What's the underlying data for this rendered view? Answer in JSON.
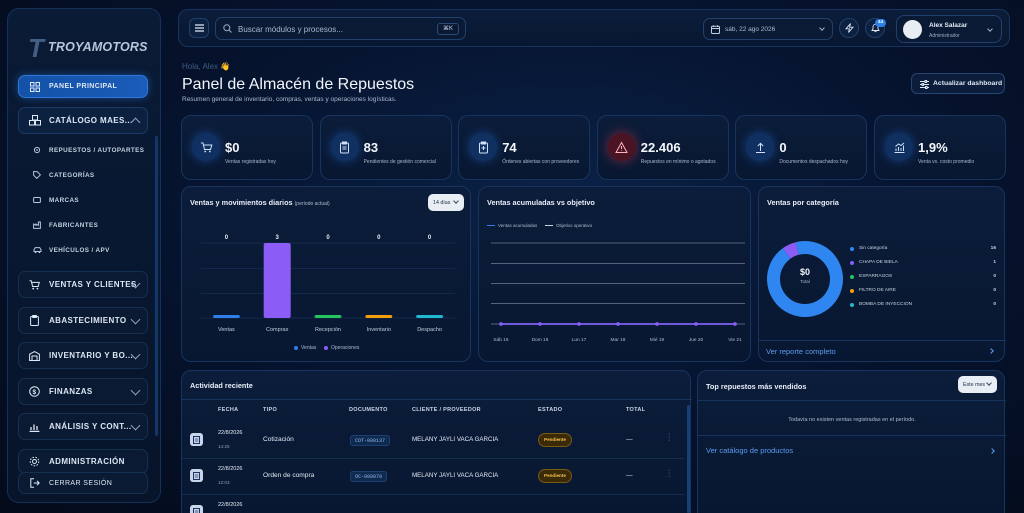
{
  "brand": {
    "logo_text": "TROYAMOTORS"
  },
  "sidebar": {
    "active": "PANEL PRINCIPAL",
    "catalog": "CATÁLOGO MAES...",
    "catalog_items": [
      "REPUESTOS / AUTOPARTES",
      "CATEGORÍAS",
      "MARCAS",
      "FABRICANTES",
      "VEHÍCULOS / APV"
    ],
    "groups": [
      "VENTAS Y CLIENTES",
      "ABASTECIMIENTO",
      "INVENTARIO Y BO...",
      "FINANZAS",
      "ANÁLISIS Y CONT...",
      "ADMINISTRACIÓN"
    ],
    "logout": "CERRAR SESIÓN"
  },
  "topbar": {
    "search_placeholder": "Buscar módulos y procesos...",
    "shortcut": "⌘K",
    "date": "sáb, 22 ago 2026",
    "notifications": "44",
    "user_name": "Alex Salazar",
    "user_role": "Administrador"
  },
  "header": {
    "greeting": "Hola, Alex 👋",
    "title": "Panel de Almacén de Repuestos",
    "subtitle": "Resumen general de inventario, compras, ventas y operaciones logísticas.",
    "refresh": "Actualizar dashboard"
  },
  "kpis": [
    {
      "value": "$0",
      "label": "Ventas registradas hoy",
      "icon": "cart-icon",
      "accent": "#2f7fe8"
    },
    {
      "value": "83",
      "label": "Pendientes de gestión comercial",
      "icon": "clipboard-icon",
      "accent": "#2f7fe8"
    },
    {
      "value": "74",
      "label": "Órdenes abiertas con proveedores",
      "icon": "clipboard-plus-icon",
      "accent": "#2f7fe8"
    },
    {
      "value": "22.406",
      "label": "Repuestos en mínimo o agotados",
      "icon": "warning-icon",
      "accent": "#e5475d"
    },
    {
      "value": "0",
      "label": "Documentos despachados hoy",
      "icon": "upload-icon",
      "accent": "#2f7fe8"
    },
    {
      "value": "1,9%",
      "label": "Venta vs. costo promedio",
      "icon": "trend-icon",
      "accent": "#2f7fe8"
    }
  ],
  "daily": {
    "title": "Ventas y movimientos diarios",
    "period": "(período actual)",
    "select": "14 días",
    "legend": [
      "Ventas",
      "Operaciones"
    ]
  },
  "cumulative": {
    "title": "Ventas acumuladas vs objetivo",
    "legend": [
      "Ventas acumuladas",
      "Objetivo operativo"
    ]
  },
  "by_category": {
    "title": "Ventas por categoría",
    "center_value": "$0",
    "center_label": "Total",
    "link": "Ver reporte completo",
    "items": [
      {
        "name": "Sin categoría",
        "count": "16",
        "color": "#2f86f0"
      },
      {
        "name": "CHAPA DE BIELA",
        "count": "1",
        "color": "#8b5cf6"
      },
      {
        "name": "ESPARRAGOS",
        "count": "0",
        "color": "#22c55e"
      },
      {
        "name": "FILTRO DE AIRE",
        "count": "0",
        "color": "#f59e0b"
      },
      {
        "name": "BOMBA DE INYECCION",
        "count": "0",
        "color": "#22b8cf"
      }
    ]
  },
  "chart_data": [
    {
      "type": "bar",
      "title": "Ventas y movimientos diarios",
      "categories": [
        "Ventas",
        "Compras",
        "Recepción",
        "Inventario",
        "Despacho"
      ],
      "values": [
        0,
        3,
        0,
        0,
        0
      ],
      "colors": [
        "#2f7fe8",
        "#8b5cf6",
        "#22c55e",
        "#f59e0b",
        "#22b8cf"
      ],
      "ylim": [
        0,
        3
      ],
      "grid": true,
      "legend": "bottom"
    },
    {
      "type": "line",
      "title": "Ventas acumuladas vs objetivo",
      "x": [
        "Sáb 15",
        "Dom 16",
        "Lun 17",
        "Mar 18",
        "Mié 19",
        "Jue 20",
        "Vie 21"
      ],
      "series": [
        {
          "name": "Ventas acumuladas",
          "values": [
            0,
            0,
            0,
            0,
            0,
            0,
            0
          ],
          "color": "#2f7fe8"
        },
        {
          "name": "Objetivo operativo",
          "values": [
            0,
            0,
            0,
            0,
            0,
            0,
            0
          ],
          "color": "#8b5cf6"
        }
      ],
      "grid": true,
      "legend": "top-left"
    },
    {
      "type": "pie",
      "title": "Ventas por categoría",
      "labels": [
        "Sin categoría",
        "CHAPA DE BIELA",
        "ESPARRAGOS",
        "FILTRO DE AIRE",
        "BOMBA DE INYECCION"
      ],
      "values": [
        16,
        1,
        0,
        0,
        0
      ],
      "colors": [
        "#2f86f0",
        "#8b5cf6",
        "#22c55e",
        "#f59e0b",
        "#22b8cf"
      ],
      "legend": "right"
    }
  ],
  "activity": {
    "title": "Actividad reciente",
    "headers": [
      "FECHA",
      "TIPO",
      "DOCUMENTO",
      "CLIENTE / PROVEEDOR",
      "ESTADO",
      "TOTAL"
    ],
    "rows": [
      {
        "date": "22/8/2026",
        "time": "14:25",
        "type": "Cotización",
        "doc": "COT-000137",
        "party": "MELANY JAYLI VACA GARCIA",
        "status": "Pendiente",
        "total": "—"
      },
      {
        "date": "22/8/2026",
        "time": "12:03",
        "type": "Orden de compra",
        "doc": "OC-000079",
        "party": "MELANY JAYLI VACA GARCIA",
        "status": "Pendiente",
        "total": "—"
      },
      {
        "date": "22/8/2026",
        "time": "",
        "type": "",
        "doc": "",
        "party": "",
        "status": "",
        "total": ""
      }
    ]
  },
  "top_parts": {
    "title": "Top repuestos más vendidos",
    "select": "Este mes",
    "empty": "Todavía no existen ventas registradas en el período.",
    "link": "Ver catálogo de productos"
  }
}
